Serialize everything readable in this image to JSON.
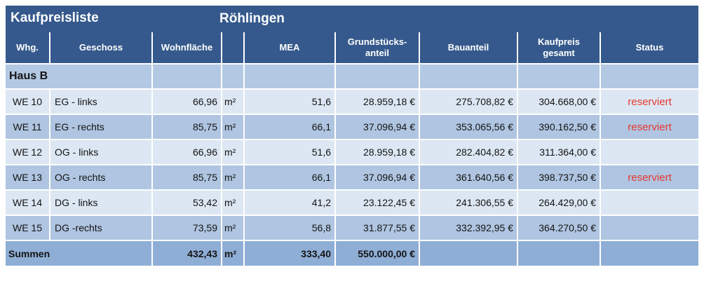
{
  "title": {
    "name": "Kaufpreisliste",
    "location": "Röhlingen"
  },
  "colors": {
    "header_bg": "#35598C",
    "row_light": "#DCE7F3",
    "row_medium": "#AFC5E1",
    "section_row": "#B3C9E3",
    "summary_row": "#8FAED6",
    "status_red": "#E6382F",
    "grid_lines": "#FFFFFF",
    "header_text": "#FFFFFF"
  },
  "table": {
    "columns": [
      "Whg.",
      "Geschoss",
      "Wohnfläche",
      "",
      "MEA",
      "Grundstücks-\nanteil",
      "Bauanteil",
      "Kaufpreis\ngesamt",
      "Status"
    ],
    "section_label": "Haus B",
    "rows": [
      {
        "whg": "WE 10",
        "geschoss": "EG - links",
        "wohnflaeche": "66,96",
        "unit": "m²",
        "mea": "51,6",
        "grundstuecksanteil": "28.959,18 €",
        "bauanteil": "275.708,82 €",
        "kaufpreis_gesamt": "304.668,00 €",
        "status": "reserviert"
      },
      {
        "whg": "WE 11",
        "geschoss": "EG - rechts",
        "wohnflaeche": "85,75",
        "unit": "m²",
        "mea": "66,1",
        "grundstuecksanteil": "37.096,94 €",
        "bauanteil": "353.065,56 €",
        "kaufpreis_gesamt": "390.162,50 €",
        "status": "reserviert"
      },
      {
        "whg": "WE 12",
        "geschoss": "OG - links",
        "wohnflaeche": "66,96",
        "unit": "m²",
        "mea": "51,6",
        "grundstuecksanteil": "28.959,18 €",
        "bauanteil": "282.404,82 €",
        "kaufpreis_gesamt": "311.364,00 €",
        "status": ""
      },
      {
        "whg": "WE 13",
        "geschoss": "OG - rechts",
        "wohnflaeche": "85,75",
        "unit": "m²",
        "mea": "66,1",
        "grundstuecksanteil": "37.096,94 €",
        "bauanteil": "361.640,56 €",
        "kaufpreis_gesamt": "398.737,50 €",
        "status": "reserviert"
      },
      {
        "whg": "WE 14",
        "geschoss": "DG - links",
        "wohnflaeche": "53,42",
        "unit": "m²",
        "mea": "41,2",
        "grundstuecksanteil": "23.122,45 €",
        "bauanteil": "241.306,55 €",
        "kaufpreis_gesamt": "264.429,00 €",
        "status": ""
      },
      {
        "whg": "WE 15",
        "geschoss": "DG -rechts",
        "wohnflaeche": "73,59",
        "unit": "m²",
        "mea": "56,8",
        "grundstuecksanteil": "31.877,55 €",
        "bauanteil": "332.392,95 €",
        "kaufpreis_gesamt": "364.270,50 €",
        "status": ""
      }
    ],
    "summary": {
      "label": "Summen",
      "wohnflaeche": "432,43",
      "unit": "m²",
      "mea": "333,40",
      "grundstuecksanteil": "550.000,00 €",
      "bauanteil": "",
      "kaufpreis_gesamt": "",
      "status": ""
    }
  }
}
